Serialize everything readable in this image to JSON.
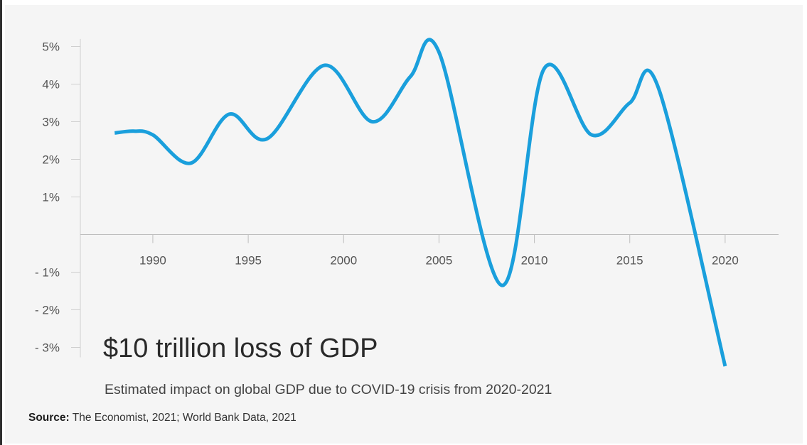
{
  "chart_data": {
    "type": "line",
    "title": "$10 trillion loss of GDP",
    "subtitle": "Estimated impact on global GDP due to COVID-19 crisis from 2020-2021",
    "xlabel": "",
    "ylabel": "",
    "x_ticks": [
      "1990",
      "1995",
      "2000",
      "2005",
      "2010",
      "2015",
      "2020"
    ],
    "y_ticks": [
      {
        "value": 5,
        "label": "5%"
      },
      {
        "value": 4,
        "label": "4%"
      },
      {
        "value": 3,
        "label": "3%"
      },
      {
        "value": 2,
        "label": "2%"
      },
      {
        "value": 1,
        "label": "1%"
      },
      {
        "value": -1,
        "label": "- 1%"
      },
      {
        "value": -2,
        "label": "- 2%"
      },
      {
        "value": -3,
        "label": "- 3%"
      }
    ],
    "xlim": [
      1986.2,
      2022.8
    ],
    "ylim": [
      -3.5,
      5.5
    ],
    "grid": false,
    "series": [
      {
        "color": "#1a9fdc",
        "x": [
          1988,
          1989,
          1990,
          1992,
          1994,
          1996,
          1999,
          2001.5,
          2003.5,
          2005,
          2008.3,
          2010.5,
          2013,
          2015,
          2016.5,
          2020
        ],
        "y": [
          2.7,
          2.75,
          2.65,
          1.9,
          3.2,
          2.55,
          4.5,
          3.0,
          4.2,
          4.85,
          -1.35,
          4.4,
          2.65,
          3.5,
          3.9,
          -3.5
        ]
      }
    ]
  },
  "source": {
    "label": "Source:",
    "text": "The Economist, 2021; World Bank Data, 2021"
  }
}
